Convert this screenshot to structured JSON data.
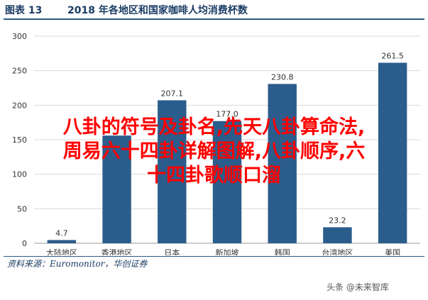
{
  "header": {
    "figure_label": "图表 13",
    "title": "2018 年各地区和国家咖啡人均消费杯数"
  },
  "chart_data": {
    "type": "bar",
    "categories": [
      "大陆地区",
      "香港地区",
      "日本",
      "新加坡",
      "韩国",
      "台湾地区",
      "美国"
    ],
    "values": [
      4.7,
      156.0,
      207.1,
      177.0,
      230.8,
      23.2,
      261.5
    ],
    "value_labels": [
      "4.7",
      "",
      "207.1",
      "177.0",
      "230.8",
      "23.2",
      "261.5"
    ],
    "ylim": [
      0,
      300
    ],
    "yticks": [
      0,
      50,
      100,
      150,
      200,
      250,
      300
    ],
    "grid": true,
    "bar_color": "#2b5d8c",
    "title": "",
    "xlabel": "",
    "ylabel": ""
  },
  "overlay_text": {
    "line1": "八卦的符号及卦名,先天八卦算命法,",
    "line2": "周易六十四卦详解图解,八卦顺序,六",
    "line3": "十四卦歌顺口溜"
  },
  "overlay_color": "#ff0000",
  "footer": {
    "source": "资料来源：Euromonitor，华创证券",
    "watermark": "头条 @未来智库"
  }
}
